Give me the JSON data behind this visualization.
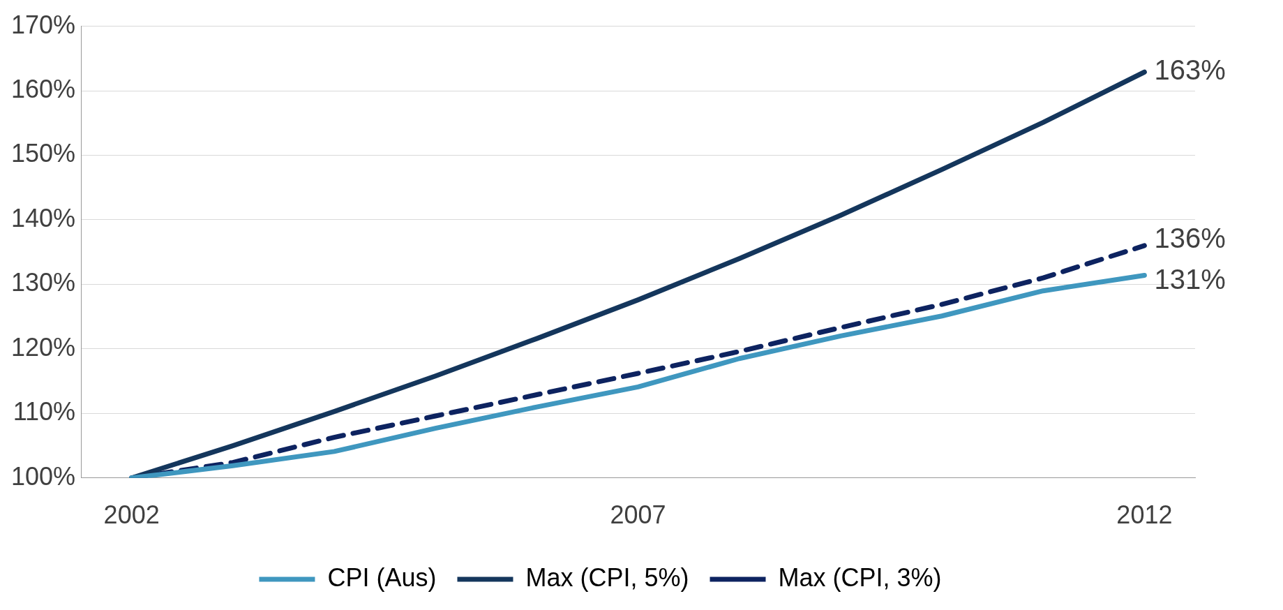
{
  "chart_data": {
    "type": "line",
    "categories": [
      "2002",
      null,
      null,
      null,
      null,
      "2007",
      null,
      null,
      null,
      null,
      "2012"
    ],
    "series": [
      {
        "name": "CPI (Aus)",
        "color": "#3f97bf",
        "values": [
          100,
          101.9,
          104.1,
          107.7,
          111,
          114.1,
          118.5,
          122,
          125.1,
          129,
          131.4
        ],
        "value_labels": [
          null,
          null,
          null,
          null,
          null,
          null,
          null,
          null,
          null,
          null,
          "131%"
        ]
      },
      {
        "name": "Max (CPI, 5%)",
        "color": "#14365c",
        "values": [
          100,
          105,
          110.3,
          115.8,
          121.6,
          127.6,
          134,
          140.7,
          147.8,
          155.1,
          162.9
        ],
        "value_labels": [
          null,
          null,
          null,
          null,
          null,
          null,
          null,
          null,
          null,
          null,
          "163%"
        ]
      },
      {
        "name": "Max (CPI, 3%)",
        "color": "#0d2360",
        "line_style": "dashed",
        "values": [
          100,
          102.4,
          106.3,
          109.6,
          112.9,
          116.2,
          119.6,
          123.3,
          126.9,
          131,
          136
        ],
        "value_labels": [
          null,
          null,
          null,
          null,
          null,
          null,
          null,
          null,
          null,
          null,
          "136%"
        ]
      }
    ],
    "ylim": [
      100,
      170
    ],
    "yticks": [
      {
        "value": 100,
        "label": "100%"
      },
      {
        "value": 110,
        "label": "110%"
      },
      {
        "value": 120,
        "label": "120%"
      },
      {
        "value": 130,
        "label": "130%"
      },
      {
        "value": 140,
        "label": "140%"
      },
      {
        "value": 150,
        "label": "150%"
      },
      {
        "value": 160,
        "label": "160%"
      },
      {
        "value": 170,
        "label": "170%"
      }
    ],
    "grid": "y",
    "legend": "bottom",
    "marker": "none",
    "line_style": "solid"
  }
}
